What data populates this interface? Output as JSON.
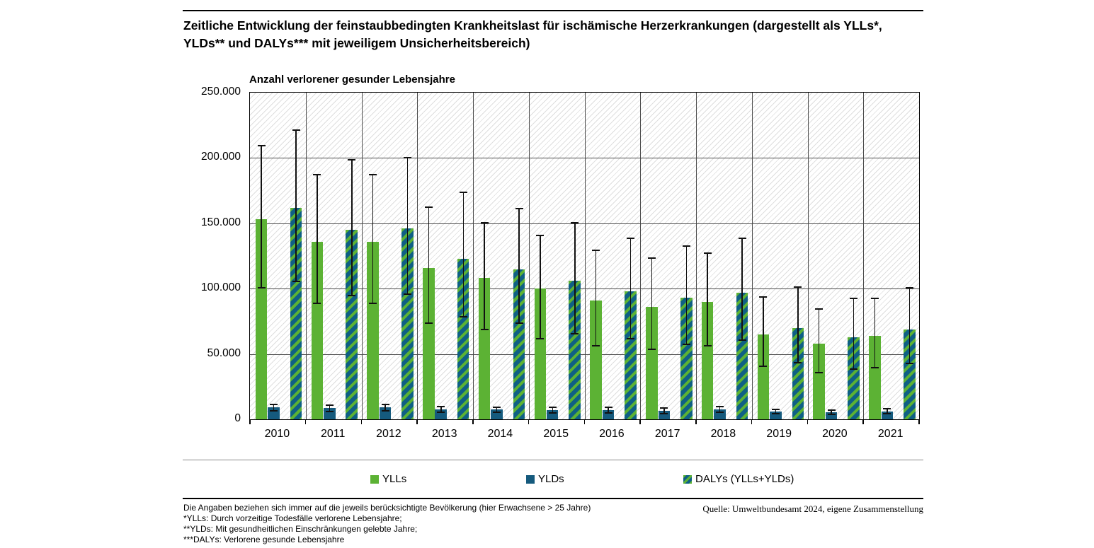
{
  "title": "Zeitliche Entwicklung der feinstaubbedingten Krankheitslast für ischämische Herzerkrankungen (dargestellt als YLLs*, YLDs** und DALYs*** mit jeweiligem Unsicherheitsbereich)",
  "chart_data": {
    "type": "bar",
    "title": "Zeitliche Entwicklung der feinstaubbedingten Krankheitslast für ischämische Herzerkrankungen (dargestellt als YLLs*, YLDs** und DALYs*** mit jeweiligem Unsicherheitsbereich)",
    "axis_title": "Anzahl verlorener gesunder Lebensjahre",
    "xlabel": "",
    "ylabel": "Anzahl verlorener gesunder Lebensjahre",
    "ylim": [
      0,
      250000
    ],
    "grid": true,
    "legend_position": "bottom",
    "plot_background": "light-gray diagonal hatch",
    "y_ticks": [
      {
        "label": "250.000",
        "value": 250000
      },
      {
        "label": "200.000",
        "value": 200000
      },
      {
        "label": "150.000",
        "value": 150000
      },
      {
        "label": "100.000",
        "value": 100000
      },
      {
        "label": "50.000",
        "value": 50000
      },
      {
        "label": "0",
        "value": 0
      }
    ],
    "categories": [
      "2010",
      "2011",
      "2012",
      "2013",
      "2014",
      "2015",
      "2016",
      "2017",
      "2018",
      "2019",
      "2020",
      "2021"
    ],
    "series": [
      {
        "name": "YLLs",
        "fill": "solid",
        "color": "#5cb234",
        "values": [
          153000,
          136000,
          136000,
          116000,
          108000,
          100000,
          91000,
          86000,
          90000,
          65000,
          58000,
          64000
        ],
        "err_low": [
          100000,
          88000,
          88000,
          73000,
          68000,
          61000,
          56000,
          53000,
          56000,
          40000,
          35000,
          39000
        ],
        "err_high": [
          210000,
          188000,
          188000,
          163000,
          151000,
          141000,
          130000,
          124000,
          128000,
          94000,
          85000,
          93000
        ]
      },
      {
        "name": "YLDs",
        "fill": "solid",
        "color": "#155a7d",
        "values": [
          9000,
          8500,
          9000,
          7500,
          7500,
          7000,
          7000,
          6500,
          7500,
          6000,
          5500,
          6000
        ],
        "err_low": [
          6000,
          5500,
          6000,
          5000,
          5000,
          4500,
          4500,
          4000,
          5000,
          4000,
          3500,
          4000
        ],
        "err_high": [
          12000,
          11500,
          12000,
          10500,
          10000,
          9500,
          9500,
          9000,
          10500,
          8000,
          7500,
          8500
        ]
      },
      {
        "name": "DALYs (YLLs+YLDs)",
        "fill": "hatched",
        "color": "#0f6084",
        "stripe_color": "#5cb234",
        "values": [
          162000,
          145000,
          146000,
          123000,
          115000,
          106000,
          98000,
          93000,
          97000,
          70000,
          63000,
          69000
        ],
        "err_low": [
          105000,
          94000,
          95000,
          78000,
          73000,
          65000,
          61000,
          57000,
          60000,
          43000,
          38000,
          42000
        ],
        "err_high": [
          222000,
          199000,
          201000,
          174000,
          162000,
          151000,
          139000,
          133000,
          139000,
          102000,
          93000,
          101000
        ]
      }
    ]
  },
  "legend": {
    "items": [
      {
        "label": "YLLs"
      },
      {
        "label": "YLDs"
      },
      {
        "label": "DALYs (YLLs+YLDs)"
      }
    ]
  },
  "footnotes": [
    "Die Angaben beziehen sich immer auf die jeweils berücksichtigte Bevölkerung (hier Erwachsene > 25 Jahre)",
    "*YLLs: Durch vorzeitige Todesfälle verlorene Lebensjahre;",
    "**YLDs: Mit gesundheitlichen Einschränkungen gelebte Jahre;",
    "***DALYs: Verlorene gesunde Lebensjahre"
  ],
  "source": "Quelle: Umweltbundesamt 2024, eigene Zusammenstellung",
  "colors": {
    "ylls_green": "#5cb234",
    "ylds_blue": "#155a7d",
    "dalys_blue": "#0f6084",
    "gridline": "#4a4a4a",
    "hatch_gray": "#dedede"
  }
}
